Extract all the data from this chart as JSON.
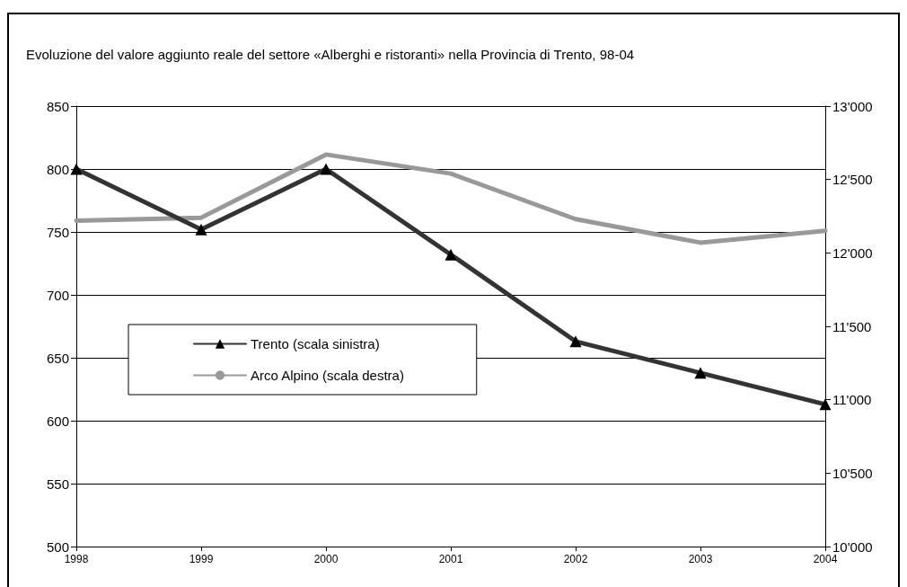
{
  "chart_data": {
    "type": "line",
    "title": "Evoluzione del valore aggiunto reale del settore «Alberghi e ristoranti» nella Provincia di Trento, 98-04",
    "categories": [
      "1998",
      "1999",
      "2000",
      "2001",
      "2002",
      "2003",
      "2004"
    ],
    "series": [
      {
        "name": "Trento (scala sinistra)",
        "color": "#333333",
        "marker": "triangle",
        "values": [
          800,
          752,
          800,
          732,
          663,
          638,
          613
        ]
      },
      {
        "name": "Arco Alpino (scala destra)",
        "color": "#999999",
        "marker": "none",
        "axis": "y2",
        "values": [
          12220,
          12240,
          12670,
          12540,
          12230,
          12070,
          12150
        ]
      }
    ],
    "ylim": [
      500,
      850
    ],
    "yticks": [
      500,
      550,
      600,
      650,
      700,
      750,
      800,
      850
    ],
    "y2lim": [
      10000,
      13000
    ],
    "y2ticks": [
      {
        "value": 10000,
        "label": "10'000"
      },
      {
        "value": 10500,
        "label": "10'500"
      },
      {
        "value": 11000,
        "label": "11'000"
      },
      {
        "value": 11500,
        "label": "11'500"
      },
      {
        "value": 12000,
        "label": "12'000"
      },
      {
        "value": 12500,
        "label": "12'500"
      },
      {
        "value": 13000,
        "label": "13'000"
      }
    ],
    "grid": "y",
    "legend": "center left",
    "line_style": "solid"
  }
}
